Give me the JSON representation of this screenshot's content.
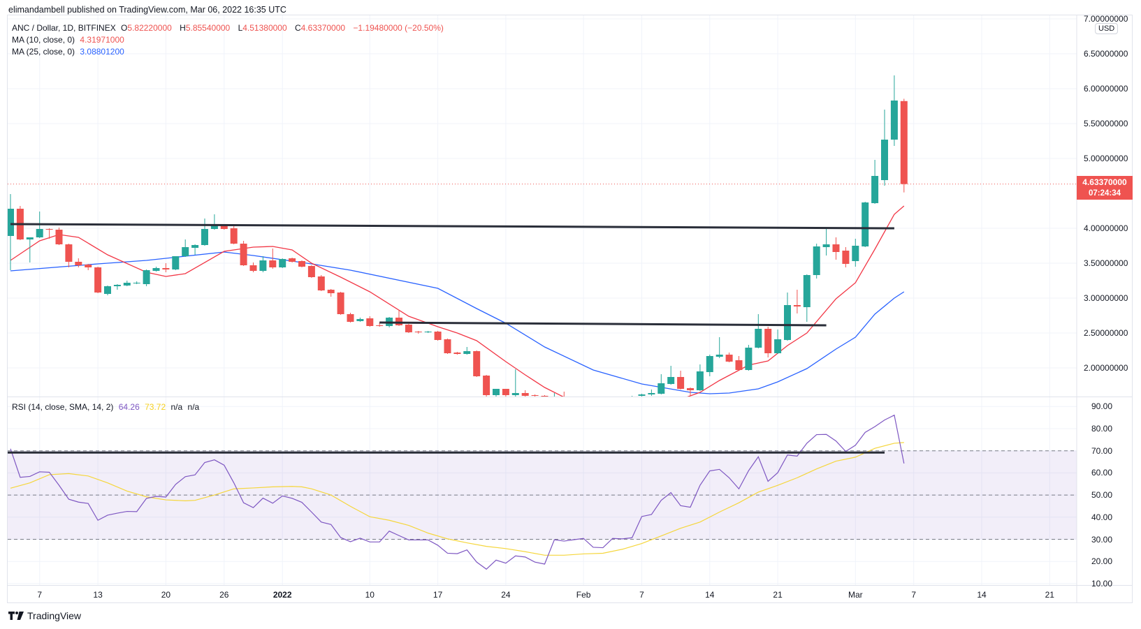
{
  "header": {
    "published": "elimandambell published on TradingView.com, Mar 06, 2022 16:35 UTC"
  },
  "legend": {
    "symbol": "ANC / Dollar, 1D, BITFINEX",
    "o_label": "O",
    "o_value": "5.82220000",
    "h_label": "H",
    "h_value": "5.85540000",
    "l_label": "L",
    "l_value": "4.51380000",
    "c_label": "C",
    "c_value": "4.63370000",
    "change": "−1.19480000 (−20.50%)",
    "ma10_label": "MA (10, close, 0)",
    "ma10_value": "4.31971000",
    "ma25_label": "MA (25, close, 0)",
    "ma25_value": "3.08801200",
    "rsi_label": "RSI (14, close, SMA, 14, 2)",
    "rsi_value": "64.26",
    "rsi_sma_value": "73.72",
    "na1": "n/a",
    "na2": "n/a"
  },
  "price_axis": {
    "currency": "USD",
    "last_price": "4.63370000",
    "countdown": "07:24:34"
  },
  "footer": {
    "brand": "TradingView"
  },
  "colors": {
    "up": "#26a69a",
    "down": "#ef5350",
    "ma10": "#f23645",
    "ma25": "#2962ff",
    "rsi": "#7e57c2",
    "rsi_sma": "#f5d63c",
    "trendline": "#2a2e39"
  },
  "chart_data": {
    "type": "candlestick",
    "title": "ANC / Dollar, 1D, BITFINEX",
    "start_date": "2021-12-04",
    "ylim": [
      1.59,
      7.06
    ],
    "y_ticks": [
      "7.00000000",
      "6.50000000",
      "6.00000000",
      "5.50000000",
      "5.00000000",
      "4.00000000",
      "3.50000000",
      "3.00000000",
      "2.50000000",
      "2.00000000"
    ],
    "y_tick_values": [
      7.0,
      6.5,
      6.0,
      5.5,
      5.0,
      4.0,
      3.5,
      3.0,
      2.5,
      2.0
    ],
    "x_ticks": [
      {
        "label": "7",
        "day": 4
      },
      {
        "label": "13",
        "day": 10
      },
      {
        "label": "20",
        "day": 17
      },
      {
        "label": "26",
        "day": 23
      },
      {
        "label": "2022",
        "day": 29
      },
      {
        "label": "10",
        "day": 38
      },
      {
        "label": "17",
        "day": 45
      },
      {
        "label": "24",
        "day": 52
      },
      {
        "label": "Feb",
        "day": 60
      },
      {
        "label": "7",
        "day": 66
      },
      {
        "label": "14",
        "day": 73
      },
      {
        "label": "21",
        "day": 80
      },
      {
        "label": "Mar",
        "day": 88
      },
      {
        "label": "7",
        "day": 94
      },
      {
        "label": "14",
        "day": 101
      },
      {
        "label": "21",
        "day": 108
      }
    ],
    "ohlc": [
      [
        3.89,
        4.49,
        3.4,
        4.28
      ],
      [
        4.28,
        4.32,
        3.83,
        3.84
      ],
      [
        3.84,
        3.87,
        3.51,
        3.87
      ],
      [
        3.87,
        4.24,
        3.86,
        3.99
      ],
      [
        3.99,
        4.0,
        3.85,
        3.98
      ],
      [
        3.98,
        4.01,
        3.76,
        3.77
      ],
      [
        3.77,
        3.78,
        3.44,
        3.52
      ],
      [
        3.52,
        3.57,
        3.44,
        3.47
      ],
      [
        3.48,
        3.49,
        3.4,
        3.44
      ],
      [
        3.44,
        3.45,
        3.07,
        3.08
      ],
      [
        3.06,
        3.18,
        3.04,
        3.17
      ],
      [
        3.17,
        3.2,
        3.12,
        3.19
      ],
      [
        3.18,
        3.25,
        3.17,
        3.22
      ],
      [
        3.21,
        3.24,
        3.2,
        3.22
      ],
      [
        3.2,
        3.41,
        3.17,
        3.4
      ],
      [
        3.39,
        3.45,
        3.38,
        3.43
      ],
      [
        3.43,
        3.5,
        3.37,
        3.41
      ],
      [
        3.41,
        3.6,
        3.4,
        3.6
      ],
      [
        3.6,
        3.84,
        3.59,
        3.73
      ],
      [
        3.72,
        3.77,
        3.62,
        3.76
      ],
      [
        3.76,
        4.14,
        3.75,
        3.99
      ],
      [
        3.99,
        4.2,
        3.98,
        4.05
      ],
      [
        4.05,
        4.06,
        3.98,
        3.99
      ],
      [
        4.0,
        4.04,
        3.77,
        3.78
      ],
      [
        3.78,
        3.82,
        3.46,
        3.47
      ],
      [
        3.47,
        3.51,
        3.37,
        3.39
      ],
      [
        3.39,
        3.6,
        3.37,
        3.54
      ],
      [
        3.54,
        3.71,
        3.42,
        3.44
      ],
      [
        3.44,
        3.57,
        3.43,
        3.56
      ],
      [
        3.57,
        3.58,
        3.51,
        3.52
      ],
      [
        3.53,
        3.54,
        3.44,
        3.45
      ],
      [
        3.46,
        3.47,
        3.29,
        3.3
      ],
      [
        3.31,
        3.33,
        3.1,
        3.11
      ],
      [
        3.12,
        3.13,
        3.02,
        3.07
      ],
      [
        3.08,
        3.09,
        2.76,
        2.77
      ],
      [
        2.77,
        2.79,
        2.65,
        2.66
      ],
      [
        2.67,
        2.72,
        2.66,
        2.7
      ],
      [
        2.71,
        2.74,
        2.59,
        2.6
      ],
      [
        2.61,
        2.65,
        2.59,
        2.6
      ],
      [
        2.6,
        2.73,
        2.58,
        2.72
      ],
      [
        2.72,
        2.83,
        2.6,
        2.61
      ],
      [
        2.62,
        2.63,
        2.5,
        2.51
      ],
      [
        2.52,
        2.53,
        2.49,
        2.51
      ],
      [
        2.51,
        2.53,
        2.5,
        2.52
      ],
      [
        2.52,
        2.53,
        2.39,
        2.4
      ],
      [
        2.41,
        2.42,
        2.2,
        2.21
      ],
      [
        2.22,
        2.23,
        2.19,
        2.2
      ],
      [
        2.2,
        2.3,
        2.19,
        2.24
      ],
      [
        2.24,
        2.25,
        1.87,
        1.88
      ],
      [
        1.89,
        1.9,
        1.58,
        1.61
      ],
      [
        1.61,
        1.7,
        1.59,
        1.7
      ],
      [
        1.7,
        1.7,
        1.58,
        1.61
      ],
      [
        1.61,
        1.98,
        1.57,
        1.64
      ],
      [
        1.64,
        1.68,
        1.58,
        1.6
      ],
      [
        1.61,
        1.62,
        1.57,
        1.6
      ],
      [
        1.6,
        1.61,
        1.5,
        1.55
      ],
      [
        1.55,
        1.64,
        1.48,
        1.57
      ],
      [
        1.57,
        1.66,
        1.47,
        1.52
      ],
      [
        1.52,
        1.56,
        1.44,
        1.5
      ],
      [
        1.5,
        1.53,
        1.43,
        1.48
      ],
      [
        1.48,
        1.5,
        1.4,
        1.45
      ],
      [
        1.45,
        1.52,
        1.42,
        1.5
      ],
      [
        1.5,
        1.54,
        1.46,
        1.52
      ],
      [
        1.52,
        1.57,
        1.48,
        1.55
      ],
      [
        1.55,
        1.6,
        1.52,
        1.59
      ],
      [
        1.6,
        1.63,
        1.58,
        1.62
      ],
      [
        1.62,
        1.69,
        1.6,
        1.64
      ],
      [
        1.63,
        1.91,
        1.62,
        1.78
      ],
      [
        1.77,
        2.03,
        1.76,
        1.87
      ],
      [
        1.87,
        1.96,
        1.69,
        1.7
      ],
      [
        1.71,
        1.72,
        1.6,
        1.68
      ],
      [
        1.68,
        2.05,
        1.67,
        1.95
      ],
      [
        1.94,
        2.19,
        1.88,
        2.17
      ],
      [
        2.16,
        2.44,
        2.14,
        2.19
      ],
      [
        2.19,
        2.22,
        2.08,
        2.09
      ],
      [
        2.11,
        2.17,
        1.96,
        1.97
      ],
      [
        1.97,
        2.33,
        1.96,
        2.29
      ],
      [
        2.29,
        2.77,
        2.28,
        2.56
      ],
      [
        2.56,
        2.59,
        2.15,
        2.21
      ],
      [
        2.21,
        2.55,
        2.2,
        2.41
      ],
      [
        2.4,
        3.08,
        2.39,
        2.9
      ],
      [
        2.9,
        3.12,
        2.78,
        2.88
      ],
      [
        2.87,
        3.34,
        2.66,
        3.33
      ],
      [
        3.33,
        3.78,
        3.28,
        3.74
      ],
      [
        3.73,
        4.0,
        3.61,
        3.77
      ],
      [
        3.77,
        3.87,
        3.55,
        3.66
      ],
      [
        3.68,
        3.73,
        3.44,
        3.49
      ],
      [
        3.53,
        3.85,
        3.45,
        3.75
      ],
      [
        3.74,
        4.38,
        3.73,
        4.37
      ],
      [
        4.36,
        4.98,
        4.35,
        4.75
      ],
      [
        4.69,
        5.7,
        4.61,
        5.27
      ],
      [
        5.27,
        6.19,
        5.18,
        5.83
      ],
      [
        5.8222,
        5.8554,
        4.5138,
        4.6337
      ]
    ],
    "ma10": [
      [
        1,
        3.54
      ],
      [
        4,
        3.82
      ],
      [
        6,
        3.91
      ],
      [
        8,
        3.87
      ],
      [
        11,
        3.62
      ],
      [
        15,
        3.37
      ],
      [
        17,
        3.31
      ],
      [
        19,
        3.35
      ],
      [
        23,
        3.67
      ],
      [
        26,
        3.73
      ],
      [
        28,
        3.74
      ],
      [
        30,
        3.69
      ],
      [
        32,
        3.5
      ],
      [
        35,
        3.3
      ],
      [
        38,
        3.09
      ],
      [
        42,
        2.74
      ],
      [
        45,
        2.59
      ],
      [
        47,
        2.5
      ],
      [
        49,
        2.39
      ],
      [
        52,
        2.09
      ],
      [
        54,
        1.9
      ],
      [
        56,
        1.72
      ],
      [
        58,
        1.58
      ],
      [
        62,
        1.45
      ],
      [
        66,
        1.45
      ],
      [
        70,
        1.55
      ],
      [
        72,
        1.65
      ],
      [
        74,
        1.82
      ],
      [
        77,
        2.04
      ],
      [
        79,
        2.1
      ],
      [
        81,
        2.32
      ],
      [
        83,
        2.5
      ],
      [
        86,
        2.99
      ],
      [
        88,
        3.22
      ],
      [
        90,
        3.7
      ],
      [
        92,
        4.2
      ],
      [
        93,
        4.32
      ]
    ],
    "ma25": [
      [
        1,
        3.39
      ],
      [
        10,
        3.49
      ],
      [
        15,
        3.54
      ],
      [
        23,
        3.66
      ],
      [
        26,
        3.61
      ],
      [
        32,
        3.49
      ],
      [
        36,
        3.4
      ],
      [
        45,
        3.14
      ],
      [
        49,
        2.85
      ],
      [
        52,
        2.64
      ],
      [
        56,
        2.3
      ],
      [
        61,
        1.97
      ],
      [
        66,
        1.77
      ],
      [
        71,
        1.65
      ],
      [
        73,
        1.63
      ],
      [
        75,
        1.64
      ],
      [
        78,
        1.7
      ],
      [
        80,
        1.8
      ],
      [
        83,
        1.99
      ],
      [
        86,
        2.27
      ],
      [
        88,
        2.44
      ],
      [
        90,
        2.77
      ],
      [
        92,
        3.0
      ],
      [
        93,
        3.09
      ]
    ],
    "trendlines": [
      {
        "name": "resistance-upper",
        "from": [
          1,
          4.06
        ],
        "to": [
          92,
          4.0
        ]
      },
      {
        "name": "resistance-lower",
        "from": [
          39,
          2.65
        ],
        "to": [
          85,
          2.61
        ]
      }
    ],
    "last_price": 4.6337,
    "rsi": {
      "ylim": [
        8,
        93
      ],
      "ticks": [
        "90.00",
        "80.00",
        "70.00",
        "60.00",
        "50.00",
        "40.00",
        "30.00",
        "20.00",
        "10.00"
      ],
      "tick_values": [
        90,
        80,
        70,
        60,
        50,
        40,
        30,
        20,
        10
      ],
      "bands": {
        "upper": 70,
        "middle": 50,
        "lower": 30
      },
      "values": [
        70.9,
        58.0,
        58.4,
        60.5,
        60.3,
        54.4,
        48.1,
        46.8,
        46.2,
        38.6,
        40.9,
        41.8,
        42.6,
        42.5,
        48.5,
        49.4,
        49.1,
        54.8,
        58.3,
        59.1,
        64.7,
        65.9,
        63.5,
        55.5,
        46.5,
        44.3,
        48.6,
        46.3,
        49.6,
        48.5,
        46.7,
        42.3,
        37.8,
        36.7,
        30.8,
        28.9,
        30.5,
        28.8,
        28.8,
        33.7,
        31.7,
        29.7,
        29.7,
        29.7,
        27.3,
        23.7,
        23.5,
        25.2,
        19.7,
        16.5,
        20.6,
        19.2,
        22.5,
        22.0,
        19.7,
        18.8,
        29.8,
        29.2,
        29.8,
        30.4,
        26.4,
        26.2,
        30.4,
        30.2,
        30.7,
        40.3,
        41.2,
        47.6,
        51.1,
        45.2,
        44.5,
        54.4,
        60.9,
        61.6,
        57.8,
        52.8,
        61.0,
        67.3,
        56.2,
        60.1,
        68.1,
        67.6,
        73.4,
        77.3,
        77.4,
        74.4,
        69.7,
        72.5,
        78.3,
        80.9,
        83.9,
        86.1,
        64.26
      ],
      "sma": [
        [
          1,
          53.1
        ],
        [
          3,
          55.5
        ],
        [
          5,
          59.2
        ],
        [
          7,
          59.7
        ],
        [
          9,
          58.6
        ],
        [
          11,
          55.5
        ],
        [
          13,
          51.8
        ],
        [
          15,
          49.2
        ],
        [
          17,
          47.8
        ],
        [
          19,
          47.4
        ],
        [
          20,
          47.6
        ],
        [
          22,
          50.0
        ],
        [
          24,
          52.8
        ],
        [
          26,
          53.2
        ],
        [
          28,
          53.7
        ],
        [
          30,
          53.9
        ],
        [
          31,
          53.7
        ],
        [
          32,
          52.8
        ],
        [
          34,
          50.0
        ],
        [
          36,
          44.9
        ],
        [
          38,
          40.2
        ],
        [
          40,
          38.6
        ],
        [
          42,
          36.3
        ],
        [
          44,
          32.8
        ],
        [
          46,
          30.2
        ],
        [
          48,
          28.4
        ],
        [
          50,
          26.8
        ],
        [
          52,
          25.8
        ],
        [
          54,
          24.4
        ],
        [
          56,
          22.8
        ],
        [
          58,
          22.8
        ],
        [
          60,
          23.4
        ],
        [
          62,
          23.7
        ],
        [
          64,
          25.5
        ],
        [
          66,
          28.1
        ],
        [
          68,
          31.5
        ],
        [
          70,
          35.0
        ],
        [
          72,
          37.8
        ],
        [
          74,
          42.3
        ],
        [
          76,
          46.5
        ],
        [
          78,
          51.3
        ],
        [
          80,
          54.4
        ],
        [
          82,
          57.8
        ],
        [
          84,
          61.8
        ],
        [
          86,
          65.3
        ],
        [
          88,
          67.1
        ],
        [
          90,
          71.1
        ],
        [
          92,
          73.4
        ],
        [
          93,
          73.72
        ]
      ],
      "trendline": {
        "from": [
          1,
          69.2
        ],
        "to": [
          91,
          69.2
        ]
      }
    }
  }
}
